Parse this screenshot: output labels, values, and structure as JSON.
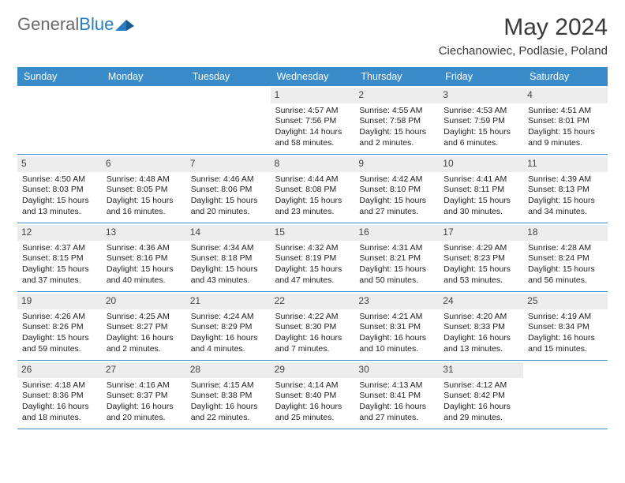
{
  "brand": {
    "part1": "General",
    "part2": "Blue"
  },
  "title": "May 2024",
  "location": "Ciechanowiec, Podlasie, Poland",
  "colors": {
    "header_bg": "#3a8bc9",
    "header_text": "#ffffff",
    "daynum_bg": "#ededed",
    "border": "#3a8bc9",
    "brand_gray": "#6a6a6a",
    "brand_blue": "#2b7bbf"
  },
  "daysOfWeek": [
    "Sunday",
    "Monday",
    "Tuesday",
    "Wednesday",
    "Thursday",
    "Friday",
    "Saturday"
  ],
  "weeks": [
    [
      {
        "n": "",
        "sr": "",
        "ss": "",
        "dl": ""
      },
      {
        "n": "",
        "sr": "",
        "ss": "",
        "dl": ""
      },
      {
        "n": "",
        "sr": "",
        "ss": "",
        "dl": ""
      },
      {
        "n": "1",
        "sr": "Sunrise: 4:57 AM",
        "ss": "Sunset: 7:56 PM",
        "dl": "Daylight: 14 hours and 58 minutes."
      },
      {
        "n": "2",
        "sr": "Sunrise: 4:55 AM",
        "ss": "Sunset: 7:58 PM",
        "dl": "Daylight: 15 hours and 2 minutes."
      },
      {
        "n": "3",
        "sr": "Sunrise: 4:53 AM",
        "ss": "Sunset: 7:59 PM",
        "dl": "Daylight: 15 hours and 6 minutes."
      },
      {
        "n": "4",
        "sr": "Sunrise: 4:51 AM",
        "ss": "Sunset: 8:01 PM",
        "dl": "Daylight: 15 hours and 9 minutes."
      }
    ],
    [
      {
        "n": "5",
        "sr": "Sunrise: 4:50 AM",
        "ss": "Sunset: 8:03 PM",
        "dl": "Daylight: 15 hours and 13 minutes."
      },
      {
        "n": "6",
        "sr": "Sunrise: 4:48 AM",
        "ss": "Sunset: 8:05 PM",
        "dl": "Daylight: 15 hours and 16 minutes."
      },
      {
        "n": "7",
        "sr": "Sunrise: 4:46 AM",
        "ss": "Sunset: 8:06 PM",
        "dl": "Daylight: 15 hours and 20 minutes."
      },
      {
        "n": "8",
        "sr": "Sunrise: 4:44 AM",
        "ss": "Sunset: 8:08 PM",
        "dl": "Daylight: 15 hours and 23 minutes."
      },
      {
        "n": "9",
        "sr": "Sunrise: 4:42 AM",
        "ss": "Sunset: 8:10 PM",
        "dl": "Daylight: 15 hours and 27 minutes."
      },
      {
        "n": "10",
        "sr": "Sunrise: 4:41 AM",
        "ss": "Sunset: 8:11 PM",
        "dl": "Daylight: 15 hours and 30 minutes."
      },
      {
        "n": "11",
        "sr": "Sunrise: 4:39 AM",
        "ss": "Sunset: 8:13 PM",
        "dl": "Daylight: 15 hours and 34 minutes."
      }
    ],
    [
      {
        "n": "12",
        "sr": "Sunrise: 4:37 AM",
        "ss": "Sunset: 8:15 PM",
        "dl": "Daylight: 15 hours and 37 minutes."
      },
      {
        "n": "13",
        "sr": "Sunrise: 4:36 AM",
        "ss": "Sunset: 8:16 PM",
        "dl": "Daylight: 15 hours and 40 minutes."
      },
      {
        "n": "14",
        "sr": "Sunrise: 4:34 AM",
        "ss": "Sunset: 8:18 PM",
        "dl": "Daylight: 15 hours and 43 minutes."
      },
      {
        "n": "15",
        "sr": "Sunrise: 4:32 AM",
        "ss": "Sunset: 8:19 PM",
        "dl": "Daylight: 15 hours and 47 minutes."
      },
      {
        "n": "16",
        "sr": "Sunrise: 4:31 AM",
        "ss": "Sunset: 8:21 PM",
        "dl": "Daylight: 15 hours and 50 minutes."
      },
      {
        "n": "17",
        "sr": "Sunrise: 4:29 AM",
        "ss": "Sunset: 8:23 PM",
        "dl": "Daylight: 15 hours and 53 minutes."
      },
      {
        "n": "18",
        "sr": "Sunrise: 4:28 AM",
        "ss": "Sunset: 8:24 PM",
        "dl": "Daylight: 15 hours and 56 minutes."
      }
    ],
    [
      {
        "n": "19",
        "sr": "Sunrise: 4:26 AM",
        "ss": "Sunset: 8:26 PM",
        "dl": "Daylight: 15 hours and 59 minutes."
      },
      {
        "n": "20",
        "sr": "Sunrise: 4:25 AM",
        "ss": "Sunset: 8:27 PM",
        "dl": "Daylight: 16 hours and 2 minutes."
      },
      {
        "n": "21",
        "sr": "Sunrise: 4:24 AM",
        "ss": "Sunset: 8:29 PM",
        "dl": "Daylight: 16 hours and 4 minutes."
      },
      {
        "n": "22",
        "sr": "Sunrise: 4:22 AM",
        "ss": "Sunset: 8:30 PM",
        "dl": "Daylight: 16 hours and 7 minutes."
      },
      {
        "n": "23",
        "sr": "Sunrise: 4:21 AM",
        "ss": "Sunset: 8:31 PM",
        "dl": "Daylight: 16 hours and 10 minutes."
      },
      {
        "n": "24",
        "sr": "Sunrise: 4:20 AM",
        "ss": "Sunset: 8:33 PM",
        "dl": "Daylight: 16 hours and 13 minutes."
      },
      {
        "n": "25",
        "sr": "Sunrise: 4:19 AM",
        "ss": "Sunset: 8:34 PM",
        "dl": "Daylight: 16 hours and 15 minutes."
      }
    ],
    [
      {
        "n": "26",
        "sr": "Sunrise: 4:18 AM",
        "ss": "Sunset: 8:36 PM",
        "dl": "Daylight: 16 hours and 18 minutes."
      },
      {
        "n": "27",
        "sr": "Sunrise: 4:16 AM",
        "ss": "Sunset: 8:37 PM",
        "dl": "Daylight: 16 hours and 20 minutes."
      },
      {
        "n": "28",
        "sr": "Sunrise: 4:15 AM",
        "ss": "Sunset: 8:38 PM",
        "dl": "Daylight: 16 hours and 22 minutes."
      },
      {
        "n": "29",
        "sr": "Sunrise: 4:14 AM",
        "ss": "Sunset: 8:40 PM",
        "dl": "Daylight: 16 hours and 25 minutes."
      },
      {
        "n": "30",
        "sr": "Sunrise: 4:13 AM",
        "ss": "Sunset: 8:41 PM",
        "dl": "Daylight: 16 hours and 27 minutes."
      },
      {
        "n": "31",
        "sr": "Sunrise: 4:12 AM",
        "ss": "Sunset: 8:42 PM",
        "dl": "Daylight: 16 hours and 29 minutes."
      },
      {
        "n": "",
        "sr": "",
        "ss": "",
        "dl": ""
      }
    ]
  ]
}
